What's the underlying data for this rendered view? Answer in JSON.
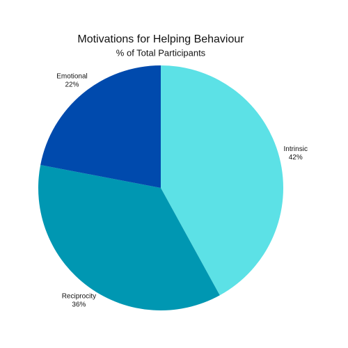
{
  "chart_data": {
    "type": "pie",
    "title": "Motivations for Helping Behaviour",
    "subtitle": "% of Total Participants",
    "categories": [
      "Intrinsic",
      "Reciprocity",
      "Emotional"
    ],
    "values": [
      42,
      36,
      22
    ],
    "value_labels": [
      "42%",
      "36%",
      "22%"
    ],
    "colors": [
      "#5ce1e6",
      "#0097b2",
      "#004aad"
    ]
  }
}
